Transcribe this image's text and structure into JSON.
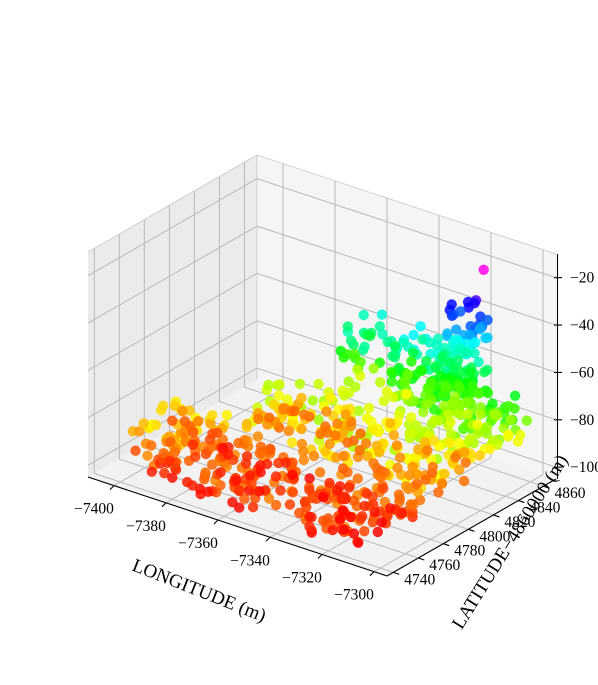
{
  "chart_data": {
    "type": "scatter3d",
    "title": "",
    "xlabel": "LONGITUDE (m)",
    "ylabel": "LATITUDE−4860000 (m)",
    "zlabel": "",
    "xlim": [
      -7410,
      -7295
    ],
    "ylim": [
      4735,
      4870
    ],
    "zlim": [
      -105,
      -10
    ],
    "x_ticks": [
      "−7400",
      "−7380",
      "−7360",
      "−7340",
      "−7320",
      "−7300"
    ],
    "y_ticks": [
      "4740",
      "4760",
      "4780",
      "4800",
      "4820",
      "4840",
      "4860"
    ],
    "z_ticks": [
      "−100",
      "−80",
      "−60",
      "−40",
      "−20"
    ],
    "x_tick_values": [
      -7400,
      -7380,
      -7360,
      -7340,
      -7320,
      -7300
    ],
    "y_tick_values": [
      4740,
      4760,
      4780,
      4800,
      4820,
      4840,
      4860
    ],
    "z_tick_values": [
      -100,
      -80,
      -60,
      -40,
      -20
    ],
    "colormap": "hsv",
    "color_by": "z",
    "grid": true,
    "point_clusters": [
      {
        "x_range": [
          -7395,
          -7310
        ],
        "y_range": [
          4745,
          4800
        ],
        "z_range": [
          -104,
          -95
        ],
        "count": 220
      },
      {
        "x_range": [
          -7385,
          -7305
        ],
        "y_range": [
          4790,
          4845
        ],
        "z_range": [
          -98,
          -82
        ],
        "count": 240
      },
      {
        "x_range": [
          -7330,
          -7300
        ],
        "y_range": [
          4825,
          4862
        ],
        "z_range": [
          -88,
          -70
        ],
        "count": 90
      },
      {
        "x_range": [
          -7345,
          -7320
        ],
        "y_range": [
          4840,
          4865
        ],
        "z_range": [
          -82,
          -55
        ],
        "count": 110
      },
      {
        "x_range": [
          -7330,
          -7316
        ],
        "y_range": [
          4848,
          4866
        ],
        "z_range": [
          -72,
          -38
        ],
        "count": 55
      },
      {
        "x_range": [
          -7408,
          -7385
        ],
        "y_range": [
          4760,
          4800
        ],
        "z_range": [
          -100,
          -88
        ],
        "count": 55
      },
      {
        "x_range": [
          -7370,
          -7345
        ],
        "y_range": [
          4840,
          4866
        ],
        "z_range": [
          -88,
          -60
        ],
        "count": 45
      }
    ],
    "outliers": [
      {
        "x": -7318,
        "y": 4860,
        "z": -22
      },
      {
        "x": -7320,
        "y": 4858,
        "z": -35
      },
      {
        "x": -7360,
        "y": 4866,
        "z": -58
      },
      {
        "x": -7396,
        "y": 4780,
        "z": -95
      },
      {
        "x": -7350,
        "y": 4800,
        "z": -92
      }
    ]
  }
}
